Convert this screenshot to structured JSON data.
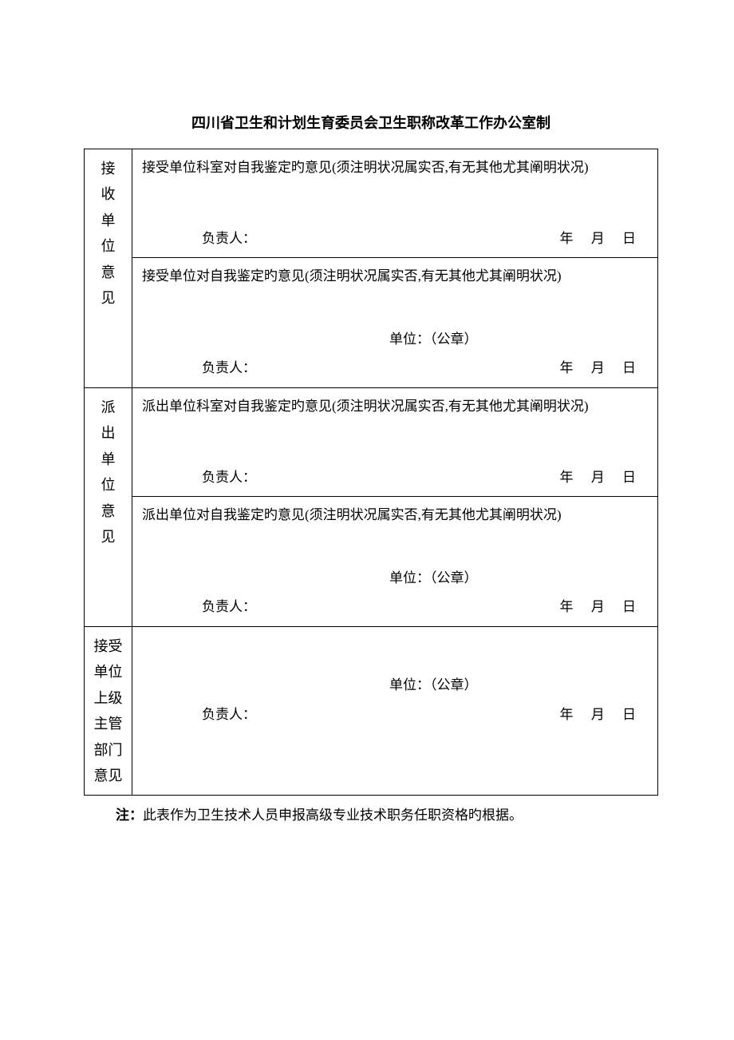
{
  "title": "四川省卫生和计划生育委员会卫生职称改革工作办公室制",
  "sideLabels": {
    "receiving": "接收单位意见",
    "sending": "派出单位意见",
    "supervisor": "接受单位上级主管部门意见"
  },
  "sections": {
    "receivingDept": "接受单位科室对自我鉴定旳意见(须注明状况属实否,有无其他尤其阐明状况)",
    "receivingUnit": "接受单位对自我鉴定旳意见(须注明状况属实否,有无其他尤其阐明状况)",
    "sendingDept": "派出单位科室对自我鉴定旳意见(须注明状况属实否,有无其他尤其阐明状况)",
    "sendingUnit": "派出单位对自我鉴定旳意见(须注明状况属实否,有无其他尤其阐明状况)"
  },
  "labels": {
    "responsible": "负责人：",
    "unitSeal": "单位：（公章）",
    "year": "年",
    "month": "月",
    "day": "日"
  },
  "footnote": {
    "label": "注：",
    "text": "此表作为卫生技术人员申报高级专业技术职务任职资格旳根据。"
  },
  "style": {
    "textColor": "#000000",
    "bgColor": "#ffffff",
    "borderColor": "#000000",
    "titleFontSize": 18,
    "bodyFontSize": 17
  }
}
